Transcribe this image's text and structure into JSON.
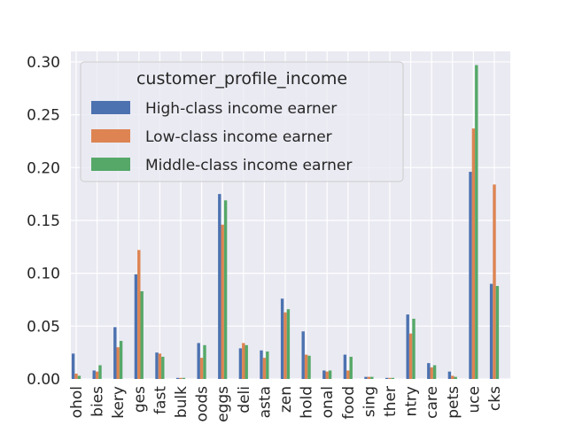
{
  "chart_data": {
    "type": "bar",
    "categories": [
      "alcohol",
      "babies",
      "bakery",
      "beverages",
      "breakfast",
      "bulk",
      "canned goods",
      "dairy eggs",
      "deli",
      "dry goods pasta",
      "frozen",
      "household",
      "international",
      "meat seafood",
      "missing",
      "other",
      "pantry",
      "personal care",
      "pets",
      "produce",
      "snacks"
    ],
    "tick_labels": [
      "ohol",
      "bies",
      "kery",
      "ges",
      "fast",
      "bulk",
      "oods",
      "eggs",
      "deli",
      "asta",
      "zen",
      "hold",
      "onal",
      "food",
      "sing",
      "ther",
      "ntry",
      "care",
      "pets",
      "uce",
      "cks"
    ],
    "series": [
      {
        "name": "High-class income earner",
        "color": "#4c72b0",
        "values": [
          0.024,
          0.008,
          0.049,
          0.099,
          0.025,
          0.001,
          0.034,
          0.175,
          0.029,
          0.027,
          0.076,
          0.045,
          0.008,
          0.023,
          0.002,
          0.001,
          0.061,
          0.015,
          0.007,
          0.196,
          0.09
        ]
      },
      {
        "name": "Low-class income earner",
        "color": "#dd8452",
        "values": [
          0.005,
          0.007,
          0.03,
          0.122,
          0.024,
          0.001,
          0.02,
          0.146,
          0.034,
          0.02,
          0.063,
          0.023,
          0.007,
          0.008,
          0.002,
          0.001,
          0.043,
          0.011,
          0.003,
          0.237,
          0.184
        ]
      },
      {
        "name": "Middle-class income earner",
        "color": "#55a868",
        "values": [
          0.003,
          0.013,
          0.036,
          0.083,
          0.021,
          0.001,
          0.032,
          0.169,
          0.032,
          0.026,
          0.066,
          0.022,
          0.008,
          0.021,
          0.002,
          0.001,
          0.057,
          0.013,
          0.002,
          0.297,
          0.088
        ]
      }
    ],
    "title": "",
    "xlabel": "",
    "ylabel": "",
    "ylim": [
      0,
      0.31
    ],
    "yticks": [
      "0.00",
      "0.05",
      "0.10",
      "0.15",
      "0.20",
      "0.25",
      "0.30"
    ],
    "ytick_values": [
      0,
      0.05,
      0.1,
      0.15,
      0.2,
      0.25,
      0.3
    ],
    "grid": true,
    "legend": {
      "title": "customer_profile_income",
      "placement": "top-left"
    },
    "background": "#eaeaf2",
    "grid_color": "#ffffff"
  }
}
